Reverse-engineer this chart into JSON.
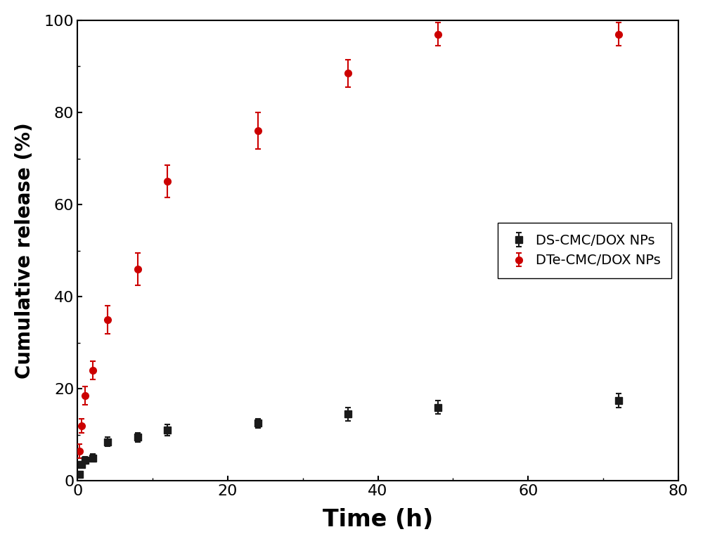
{
  "title": "",
  "xlabel": "Time (h)",
  "ylabel": "Cumulative release (%)",
  "xlim": [
    0,
    80
  ],
  "ylim": [
    0,
    100
  ],
  "xticks": [
    0,
    20,
    40,
    60,
    80
  ],
  "yticks": [
    0,
    20,
    40,
    60,
    80,
    100
  ],
  "series": [
    {
      "label": "DS-CMC/DOX NPs",
      "color": "#1a1a1a",
      "marker": "s",
      "markersize": 7,
      "linewidth": 1.5,
      "x": [
        0.25,
        0.5,
        1,
        2,
        4,
        8,
        12,
        24,
        36,
        48,
        72
      ],
      "y": [
        1.5,
        3.5,
        4.5,
        5.0,
        8.5,
        9.5,
        11.0,
        12.5,
        14.5,
        16.0,
        17.5
      ],
      "yerr": [
        0.5,
        0.5,
        0.8,
        0.8,
        1.0,
        1.0,
        1.2,
        1.0,
        1.5,
        1.5,
        1.5
      ]
    },
    {
      "label": "DTe-CMC/DOX NPs",
      "color": "#cc0000",
      "marker": "o",
      "markersize": 7,
      "linewidth": 1.5,
      "x": [
        0.25,
        0.5,
        1,
        2,
        4,
        8,
        12,
        24,
        36,
        48,
        72
      ],
      "y": [
        6.5,
        12.0,
        18.5,
        24.0,
        35.0,
        46.0,
        65.0,
        76.0,
        88.5,
        97.0,
        97.0
      ],
      "yerr": [
        1.5,
        1.5,
        2.0,
        2.0,
        3.0,
        3.5,
        3.5,
        4.0,
        3.0,
        2.5,
        2.5
      ]
    }
  ],
  "legend_loc": "center right",
  "legend_fontsize": 14,
  "tick_fontsize": 16,
  "label_fontsize": 20,
  "xlabel_fontsize": 24,
  "figsize": [
    10,
    7.77
  ],
  "dpi": 100,
  "background_color": "#ffffff",
  "spine_color": "#000000"
}
